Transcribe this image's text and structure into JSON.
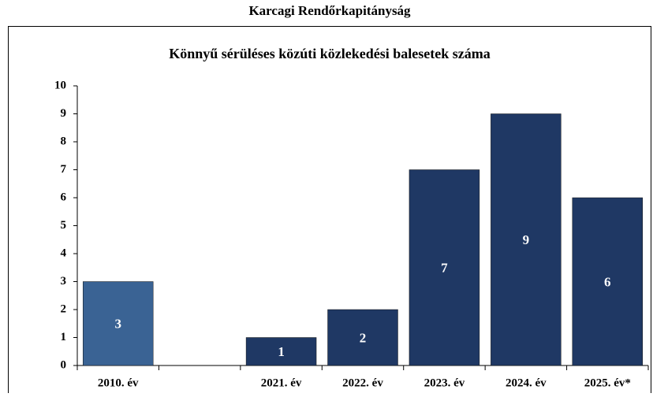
{
  "chart_data": {
    "type": "bar",
    "header": "Karcagi Rendőrkapitányság",
    "title": "Könnyű sérüléses közúti közlekedési balesetek száma",
    "categories": [
      "2010. év",
      null,
      "2021. év",
      "2022. év",
      "2023. év",
      "2024. év",
      "2025. év*"
    ],
    "values": [
      3,
      null,
      1,
      2,
      7,
      9,
      6
    ],
    "colors": [
      "#3a6394",
      "#1f3864",
      "#1f3864",
      "#1f3864",
      "#1f3864",
      "#1f3864",
      "#1f3864"
    ],
    "ylim": [
      0,
      10
    ],
    "yticks": [
      0,
      1,
      2,
      3,
      4,
      5,
      6,
      7,
      8,
      9,
      10
    ]
  }
}
